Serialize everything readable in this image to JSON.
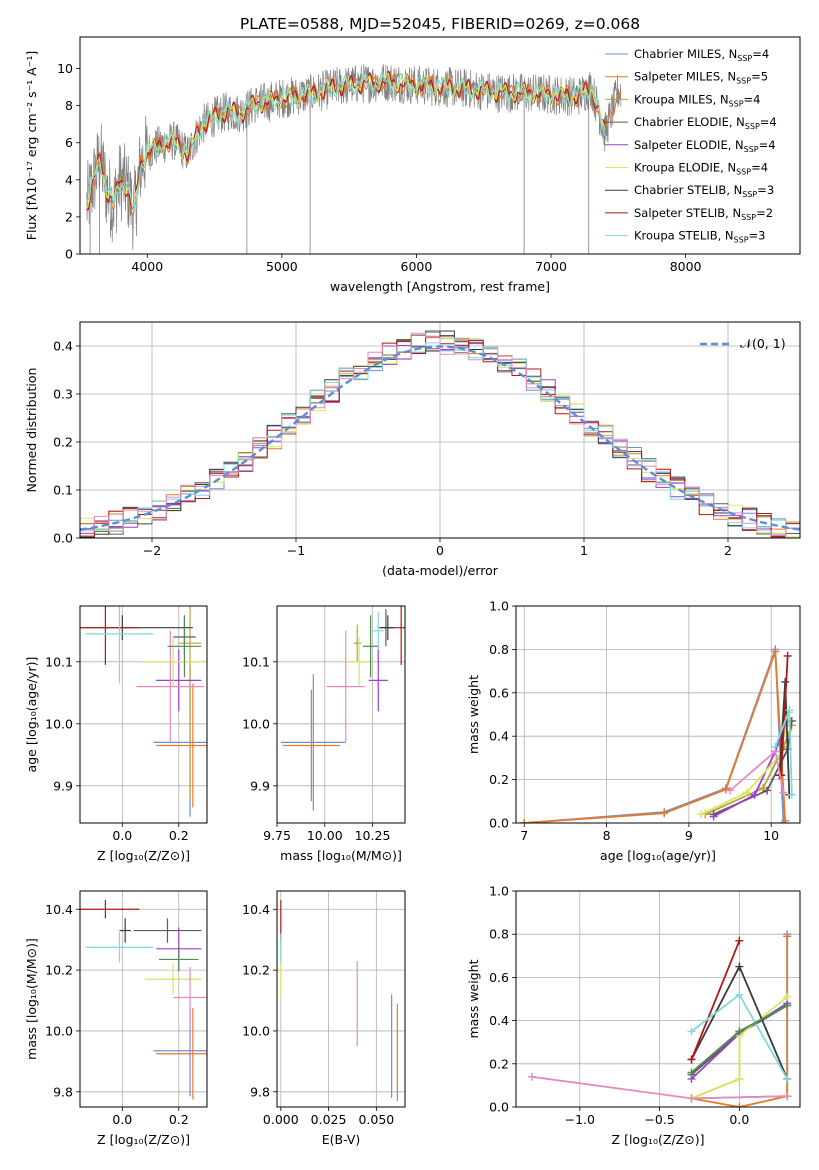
{
  "title": "PLATE=0588, MJD=52045, FIBERID=0269, z=0.068",
  "colors": {
    "Chabrier MILES": "#6f8fd8",
    "Salpeter MILES": "#e87a2a",
    "Kroupa MILES": "#b8a23a",
    "Chabrier ELODIE": "#5b5b5b",
    "Salpeter ELODIE": "#9a3fd0",
    "Kroupa ELODIE": "#d6e85a",
    "Chabrier STELIB": "#3a3a3a",
    "Salpeter STELIB": "#b01818",
    "Kroupa STELIB": "#7fdada",
    "data": "#808080",
    "pink": "#e58ac0",
    "green": "#4f8a4f",
    "grid": "#b0b0b0",
    "normal": "#5b8dd9"
  },
  "chart_data": [
    {
      "id": "spectrum",
      "type": "line",
      "title": "PLATE=0588, MJD=52045, FIBERID=0269, z=0.068",
      "xlabel": "wavelength [Angstrom, rest frame]",
      "ylabel": "Flux [fλ10⁻¹⁷ erg cm⁻² s⁻¹ A⁻¹]",
      "xlim": [
        3500,
        8850
      ],
      "ylim": [
        0,
        11.7
      ],
      "xticks": [
        "4000",
        "5000",
        "6000",
        "7000",
        "8000"
      ],
      "yticks": [
        "0",
        "2",
        "4",
        "6",
        "8",
        "10"
      ],
      "continuum": {
        "wave": [
          3550,
          3650,
          3700,
          3750,
          3800,
          3850,
          3900,
          3950,
          4000,
          4100,
          4200,
          4300,
          4400,
          4500,
          4600,
          4700,
          4800,
          4900,
          5000,
          5200,
          5400,
          5600,
          5800,
          6000,
          6200,
          6400,
          6600,
          6800,
          7000,
          7200,
          7300,
          7400,
          7500
        ],
        "flux": [
          2.6,
          5.2,
          3.4,
          2.7,
          4.0,
          3.6,
          2.2,
          4.8,
          5.5,
          5.9,
          6.1,
          5.4,
          6.9,
          7.4,
          7.7,
          7.6,
          8.1,
          8.2,
          8.4,
          8.6,
          9.0,
          9.2,
          9.3,
          9.1,
          9.0,
          8.9,
          8.7,
          8.7,
          8.6,
          8.5,
          9.0,
          6.5,
          8.8
        ]
      },
      "legend": [
        {
          "label": "Chabrier MILES, N",
          "nssp": "4"
        },
        {
          "label": "Salpeter MILES, N",
          "nssp": "5"
        },
        {
          "label": "Kroupa MILES, N",
          "nssp": "4"
        },
        {
          "label": "Chabrier ELODIE, N",
          "nssp": "4"
        },
        {
          "label": "Salpeter ELODIE, N",
          "nssp": "4"
        },
        {
          "label": "Kroupa ELODIE, N",
          "nssp": "4"
        },
        {
          "label": "Chabrier STELIB, N",
          "nssp": "3"
        },
        {
          "label": "Salpeter STELIB, N",
          "nssp": "2"
        },
        {
          "label": "Kroupa STELIB, N",
          "nssp": "3"
        }
      ],
      "legend_sub": "SSP",
      "legend_position": "top-right"
    },
    {
      "id": "residuals",
      "type": "area",
      "xlabel": "(data-model)/error",
      "ylabel": "Normed distribution",
      "xlim": [
        -2.5,
        2.5
      ],
      "ylim": [
        0,
        0.45
      ],
      "xticks": [
        "−2",
        "−1",
        "0",
        "1",
        "2"
      ],
      "yticks": [
        "0.0",
        "0.1",
        "0.2",
        "0.3",
        "0.4"
      ],
      "grid": true,
      "normal_label": "𝒩(0, 1)",
      "legend_position": "top-right"
    },
    {
      "id": "age-vs-z",
      "type": "scatter",
      "xlabel": "Z [log₁₀(Z/Z⊙)]",
      "ylabel": "age  [log₁₀(age/yr)]",
      "xlim": [
        -0.15,
        0.3
      ],
      "ylim": [
        9.84,
        10.19
      ],
      "xticks": [
        "0.0",
        "0.2"
      ],
      "yticks": [
        "9.9",
        "10.0",
        "10.1"
      ],
      "points": [
        {
          "series": "Chabrier MILES",
          "x": 0.24,
          "y": 9.97,
          "xerr": 0.13,
          "yerr": 0.12
        },
        {
          "series": "Salpeter MILES",
          "x": 0.25,
          "y": 9.965,
          "xerr": 0.13,
          "yerr": 0.1
        },
        {
          "series": "Kroupa MILES",
          "x": 0.24,
          "y": 10.13,
          "xerr": 0.04,
          "yerr": 0.25
        },
        {
          "series": "Chabrier ELODIE",
          "x": 0.22,
          "y": 10.14,
          "xerr": 0.04,
          "yerr": 0.03
        },
        {
          "series": "Salpeter ELODIE",
          "x": 0.2,
          "y": 10.07,
          "xerr": 0.08,
          "yerr": 0.05
        },
        {
          "series": "Kroupa ELODIE",
          "x": 0.18,
          "y": 10.1,
          "xerr": 0.11,
          "yerr": 0.04
        },
        {
          "series": "Chabrier STELIB",
          "x": 0.0,
          "y": 10.155,
          "xerr": 0.25,
          "yerr": 0.02
        },
        {
          "series": "Salpeter STELIB",
          "x": -0.06,
          "y": 10.155,
          "xerr": 0.12,
          "yerr": 0.06
        },
        {
          "series": "Kroupa STELIB",
          "x": -0.01,
          "y": 10.145,
          "xerr": 0.12,
          "yerr": 0.08
        },
        {
          "series": "pink",
          "x": 0.17,
          "y": 10.06,
          "xerr": 0.12,
          "yerr": 0.09
        },
        {
          "series": "green",
          "x": 0.22,
          "y": 10.125,
          "xerr": 0.06,
          "yerr": 0.05
        }
      ]
    },
    {
      "id": "age-vs-mass",
      "type": "scatter",
      "xlabel": "mass [log₁₀(M/M⊙)]",
      "ylabel": "",
      "xlim": [
        9.75,
        10.42
      ],
      "ylim": [
        9.84,
        10.19
      ],
      "xticks": [
        "9.75",
        "10.00",
        "10.25"
      ],
      "yticks": [
        "9.9",
        "10.0",
        "10.1"
      ],
      "points": [
        {
          "series": "Chabrier MILES",
          "x": 9.94,
          "y": 9.97,
          "xerr": 0.17,
          "yerr": 0.11
        },
        {
          "series": "Salpeter MILES",
          "x": 9.93,
          "y": 9.965,
          "xerr": 0.15,
          "yerr": 0.09
        },
        {
          "series": "Kroupa MILES",
          "x": 10.17,
          "y": 10.13,
          "xerr": 0.02,
          "yerr": 0.03
        },
        {
          "series": "Chabrier ELODIE",
          "x": 10.32,
          "y": 10.155,
          "xerr": 0.04,
          "yerr": 0.03
        },
        {
          "series": "Salpeter ELODIE",
          "x": 10.28,
          "y": 10.07,
          "xerr": 0.05,
          "yerr": 0.05
        },
        {
          "series": "Kroupa ELODIE",
          "x": 10.18,
          "y": 10.1,
          "xerr": 0.07,
          "yerr": 0.04
        },
        {
          "series": "Chabrier STELIB",
          "x": 10.33,
          "y": 10.155,
          "xerr": 0.04,
          "yerr": 0.02
        },
        {
          "series": "Salpeter STELIB",
          "x": 10.4,
          "y": 10.155,
          "xerr": 0.03,
          "yerr": 0.06
        },
        {
          "series": "Kroupa STELIB",
          "x": 10.28,
          "y": 10.15,
          "xerr": 0.03,
          "yerr": 0.03
        },
        {
          "series": "pink",
          "x": 10.11,
          "y": 10.06,
          "xerr": 0.1,
          "yerr": 0.09
        },
        {
          "series": "green",
          "x": 10.24,
          "y": 10.125,
          "xerr": 0.04,
          "yerr": 0.05
        }
      ]
    },
    {
      "id": "weight-vs-age",
      "type": "line",
      "xlabel": "age  [log₁₀(age/yr)]",
      "ylabel": "mass weight",
      "xlim": [
        6.9,
        10.35
      ],
      "ylim": [
        0,
        1
      ],
      "xticks": [
        "7",
        "8",
        "9",
        "10"
      ],
      "yticks": [
        "0.0",
        "0.2",
        "0.4",
        "0.6",
        "0.8",
        "1.0"
      ],
      "grid": true,
      "series": [
        {
          "name": "Chabrier MILES",
          "x": [
            7.0,
            8.7,
            9.45,
            10.05,
            10.15
          ],
          "y": [
            0.0,
            0.05,
            0.16,
            0.8,
            0.0
          ]
        },
        {
          "name": "Salpeter MILES",
          "x": [
            7.0,
            8.7,
            9.45,
            10.05,
            10.17
          ],
          "y": [
            0.0,
            0.045,
            0.155,
            0.79,
            0.01
          ]
        },
        {
          "name": "Kroupa MILES",
          "x": [
            9.2,
            9.9,
            10.15,
            10.25
          ],
          "y": [
            0.04,
            0.16,
            0.35,
            0.45
          ]
        },
        {
          "name": "Chabrier ELODIE",
          "x": [
            9.3,
            9.95,
            10.2,
            10.25
          ],
          "y": [
            0.04,
            0.15,
            0.34,
            0.47
          ]
        },
        {
          "name": "Salpeter ELODIE",
          "x": [
            9.3,
            9.8,
            10.05,
            10.2
          ],
          "y": [
            0.03,
            0.13,
            0.33,
            0.48
          ]
        },
        {
          "name": "Kroupa ELODIE",
          "x": [
            9.15,
            9.7,
            10.1,
            10.22
          ],
          "y": [
            0.04,
            0.14,
            0.31,
            0.51
          ]
        },
        {
          "name": "Chabrier STELIB",
          "x": [
            10.1,
            10.17,
            10.22
          ],
          "y": [
            0.22,
            0.65,
            0.13
          ]
        },
        {
          "name": "Salpeter STELIB",
          "x": [
            10.12,
            10.2
          ],
          "y": [
            0.22,
            0.77
          ]
        },
        {
          "name": "Kroupa STELIB",
          "x": [
            10.05,
            10.22,
            10.25
          ],
          "y": [
            0.35,
            0.52,
            0.13
          ]
        },
        {
          "name": "pink",
          "x": [
            9.5,
            10.05,
            10.15
          ],
          "y": [
            0.15,
            0.33,
            0.14
          ]
        }
      ]
    },
    {
      "id": "mass-vs-z",
      "type": "scatter",
      "xlabel": "Z [log₁₀(Z/Z⊙)]",
      "ylabel": "mass [log₁₀(M/M⊙)]",
      "xlim": [
        -0.15,
        0.3
      ],
      "ylim": [
        9.75,
        10.46
      ],
      "xticks": [
        "0.0",
        "0.2"
      ],
      "yticks": [
        "9.8",
        "10.0",
        "10.2",
        "10.4"
      ],
      "points": [
        {
          "series": "Chabrier MILES",
          "x": 0.24,
          "y": 9.935,
          "xerr": 0.13,
          "yerr": 0.15
        },
        {
          "series": "Salpeter MILES",
          "x": 0.25,
          "y": 9.925,
          "xerr": 0.13,
          "yerr": 0.15
        },
        {
          "series": "Chabrier ELODIE",
          "x": 0.16,
          "y": 10.33,
          "xerr": 0.12,
          "yerr": 0.04
        },
        {
          "series": "Salpeter ELODIE",
          "x": 0.2,
          "y": 10.27,
          "xerr": 0.08,
          "yerr": 0.07
        },
        {
          "series": "Kroupa ELODIE",
          "x": 0.18,
          "y": 10.17,
          "xerr": 0.1,
          "yerr": 0.05
        },
        {
          "series": "Chabrier STELIB",
          "x": 0.01,
          "y": 10.33,
          "xerr": 0.02,
          "yerr": 0.04
        },
        {
          "series": "Salpeter STELIB",
          "x": -0.06,
          "y": 10.4,
          "xerr": 0.12,
          "yerr": 0.03
        },
        {
          "series": "Kroupa STELIB",
          "x": -0.01,
          "y": 10.275,
          "xerr": 0.12,
          "yerr": 0.05
        },
        {
          "series": "pink",
          "x": 0.24,
          "y": 10.11,
          "xerr": 0.06,
          "yerr": 0.1
        },
        {
          "series": "green",
          "x": 0.2,
          "y": 10.235,
          "xerr": 0.07,
          "yerr": 0.04
        }
      ]
    },
    {
      "id": "mass-vs-ebv",
      "type": "scatter",
      "xlabel": "E(B-V)",
      "ylabel": "",
      "xlim": [
        -0.002,
        0.065
      ],
      "ylim": [
        9.75,
        10.46
      ],
      "xticks": [
        "0.000",
        "0.025",
        "0.050"
      ],
      "yticks": [
        "9.8",
        "10.0",
        "10.2",
        "10.4"
      ],
      "points": [
        {
          "series": "Salpeter STELIB",
          "x": 0.0,
          "y": 10.36,
          "yerr": 0.07
        },
        {
          "series": "Kroupa ELODIE",
          "x": 0.0,
          "y": 10.2,
          "yerr": 0.09
        },
        {
          "series": "Kroupa STELIB",
          "x": 0.0,
          "y": 10.27,
          "yerr": 0.05
        },
        {
          "series": "pink",
          "x": 0.04,
          "y": 10.09,
          "yerr": 0.14
        },
        {
          "series": "Chabrier MILES",
          "x": 0.058,
          "y": 9.95,
          "yerr": 0.17
        },
        {
          "series": "Salpeter MILES",
          "x": 0.061,
          "y": 9.93,
          "yerr": 0.16
        }
      ]
    },
    {
      "id": "weight-vs-z",
      "type": "line",
      "xlabel": "Z [log₁₀(Z/Z⊙)]",
      "ylabel": "mass weight",
      "xlim": [
        -1.4,
        0.38
      ],
      "ylim": [
        0,
        1
      ],
      "xticks": [
        "−1.0",
        "−0.5",
        "0.0"
      ],
      "yticks": [
        "0.0",
        "0.2",
        "0.4",
        "0.6",
        "0.8",
        "1.0"
      ],
      "grid": true,
      "series": [
        {
          "name": "Chabrier MILES",
          "x": [
            -0.3,
            0.3,
            0.3
          ],
          "y": [
            0.04,
            0.05,
            0.8
          ]
        },
        {
          "name": "Salpeter MILES",
          "x": [
            -0.3,
            0.0,
            0.3,
            0.3
          ],
          "y": [
            0.04,
            0.0,
            0.05,
            0.79
          ]
        },
        {
          "name": "Kroupa MILES",
          "x": [
            -0.3,
            0.0,
            0.0,
            0.3
          ],
          "y": [
            0.04,
            0.13,
            0.35,
            0.47
          ]
        },
        {
          "name": "Chabrier ELODIE",
          "x": [
            -0.3,
            0.0,
            0.3
          ],
          "y": [
            0.15,
            0.34,
            0.47
          ]
        },
        {
          "name": "Salpeter ELODIE",
          "x": [
            -0.3,
            0.0,
            0.3
          ],
          "y": [
            0.13,
            0.34,
            0.48
          ]
        },
        {
          "name": "Kroupa ELODIE",
          "x": [
            -0.3,
            0.0,
            0.0,
            0.3
          ],
          "y": [
            0.04,
            0.13,
            0.33,
            0.51
          ]
        },
        {
          "name": "Chabrier STELIB",
          "x": [
            -0.3,
            0.0,
            0.3
          ],
          "y": [
            0.22,
            0.65,
            0.13
          ]
        },
        {
          "name": "Salpeter STELIB",
          "x": [
            -0.3,
            0.0
          ],
          "y": [
            0.22,
            0.77
          ]
        },
        {
          "name": "Kroupa STELIB",
          "x": [
            -0.3,
            0.0,
            0.3
          ],
          "y": [
            0.35,
            0.52,
            0.13
          ]
        },
        {
          "name": "pink",
          "x": [
            -1.3,
            -0.3,
            0.3
          ],
          "y": [
            0.14,
            0.04,
            0.05
          ]
        },
        {
          "name": "green",
          "x": [
            -0.3,
            0.0,
            0.3
          ],
          "y": [
            0.16,
            0.35,
            0.47
          ]
        }
      ]
    }
  ]
}
